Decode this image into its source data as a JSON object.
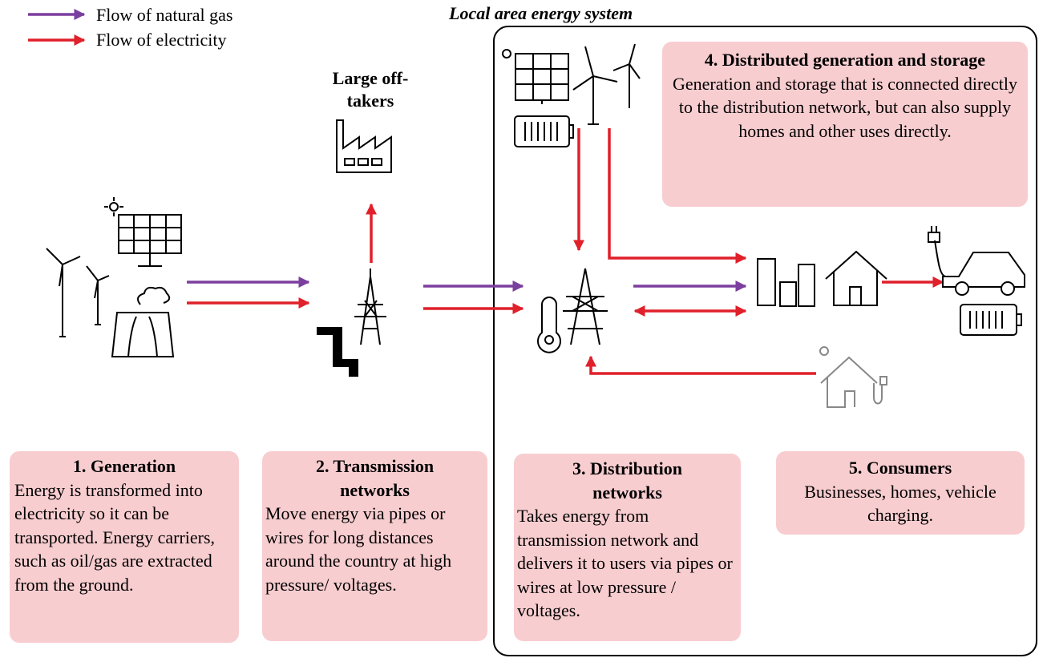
{
  "legend": {
    "items": [
      {
        "label": "Flow of natural gas",
        "color": "#7b3f9e"
      },
      {
        "label": "Flow of electricity",
        "color": "#e0202a"
      }
    ]
  },
  "local_area": {
    "title": "Local area energy system"
  },
  "large_offtakers": {
    "label": "Large off-takers"
  },
  "boxes": [
    {
      "title": "1. Generation",
      "body": "Energy is transformed into electricity so it can be transported. Energy carriers, such as oil/gas are extracted from the ground."
    },
    {
      "title": "2. Transmission networks",
      "body": "Move energy via pipes or wires for long distances around the country at high pressure/ voltages."
    },
    {
      "title": "3. Distribution networks",
      "body": "Takes energy from transmission network and delivers it to users via pipes or wires at low pressure / voltages."
    },
    {
      "title": "4. Distributed generation and storage",
      "body": "Generation and storage that is connected directly to the distribution network, but can also supply homes and other uses directly."
    },
    {
      "title": "5. Consumers",
      "body": "Businesses, homes, vehicle charging."
    }
  ]
}
